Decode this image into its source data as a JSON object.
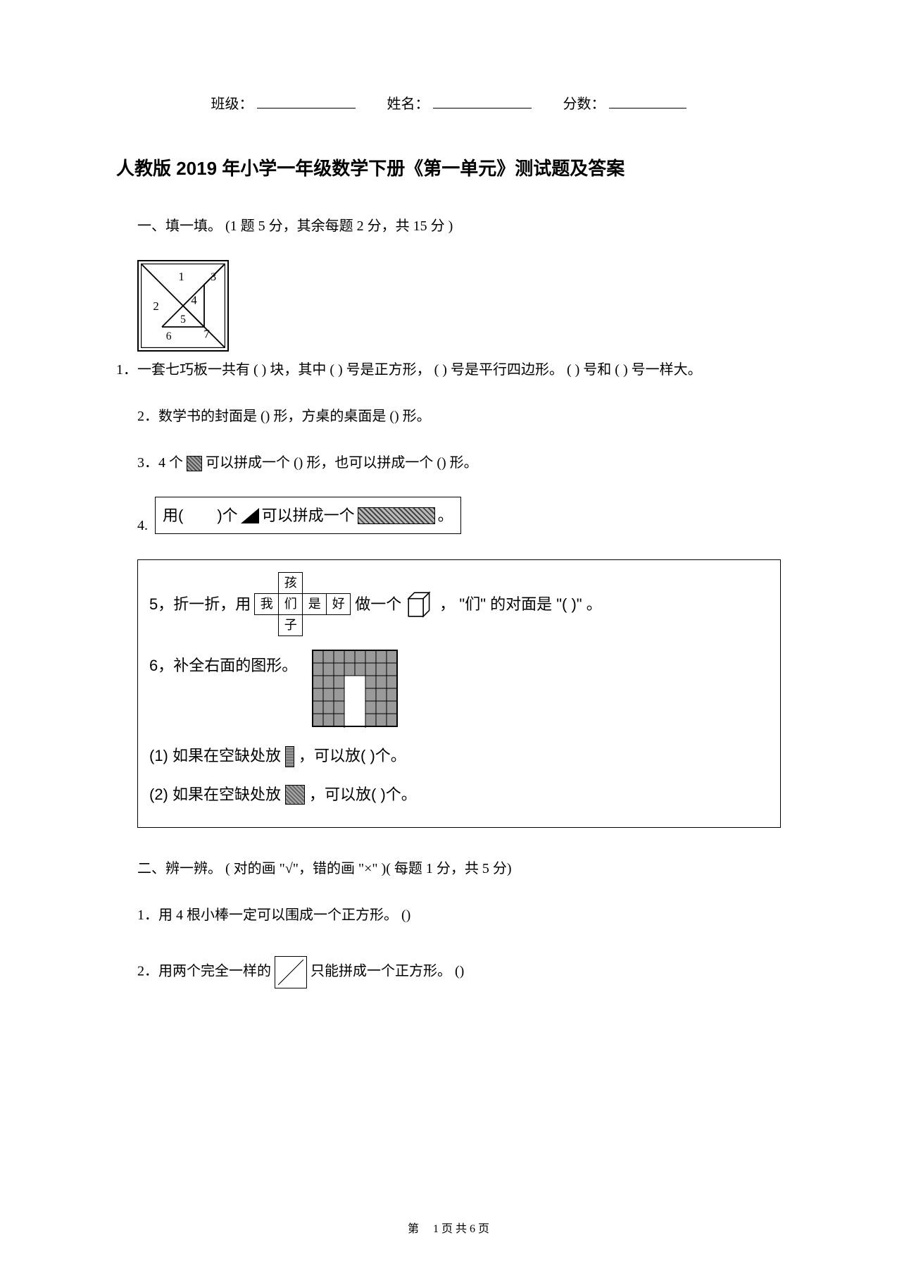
{
  "header": {
    "class_label": "班级：",
    "name_label": "姓名：",
    "score_label": "分数："
  },
  "title": "人教版 2019 年小学一年级数学下册《第一单元》测试题及答案",
  "section1": {
    "heading": "一、填一填。 (1 题 5 分，其余每题   2 分，共 15 分 )",
    "q1_prefix": "1．",
    "q1_text": "一套七巧板一共有 ( ) 块，其中 ( ) 号是正方形， ( ) 号是平行四边形。 ( ) 号和 ( ) 号一样大。",
    "tangram_labels": [
      "1",
      "2",
      "3",
      "4",
      "5",
      "6",
      "7"
    ],
    "q2": "2．数学书的封面是   () 形，方桌的桌面是   () 形。",
    "q3_a": "3．4 个 ",
    "q3_b": "可以拼成一个   () 形，也可以拼成一个  () 形。",
    "q4_num": "4.",
    "q4_a": "用(",
    "q4_b": ")个",
    "q4_c": "可以拼成一个",
    "q4_d": "。",
    "q5_a": "5，折一折，用",
    "q5_cells": {
      "top": "孩",
      "mid": [
        "我",
        "们",
        "是",
        "好"
      ],
      "bot": "子"
    },
    "q5_b": "做一个",
    "q5_c": "，  \"们\" 的对面是 \"(       )\" 。",
    "q6": "6，补全右面的图形。",
    "q6_1": "(1) 如果在空缺处放",
    "q6_1b": "，可以放(       )个。",
    "q6_2": "(2) 如果在空缺处放",
    "q6_2b": "，可以放(      )个。",
    "grid": {
      "rows": 6,
      "cols": 8,
      "gap_col_start": 3,
      "gap_col_end": 4,
      "gap_row_start": 2,
      "gap_row_end": 6
    }
  },
  "section2": {
    "heading": "二、辨一辨。 ( 对的画 \"√\"，错的画 \"×\"     )( 每题 1 分，共 5 分)",
    "q1": "1．用 4 根小棒一定可以围成一个正方形。    ()",
    "q2_a": "2．用两个完全一样的  ",
    "q2_b": "只能拼成一个正方形。   ()"
  },
  "footer": {
    "a": "第",
    "b": "1 页 共 6 页"
  },
  "colors": {
    "text": "#000000",
    "bg": "#ffffff",
    "border": "#000000",
    "hatch_dark": "#555555",
    "hatch_light": "#aaaaaa"
  },
  "fonts": {
    "body_family": "SimSun",
    "heading_family": "SimHei",
    "body_size_pt": 15,
    "title_size_pt": 20
  }
}
